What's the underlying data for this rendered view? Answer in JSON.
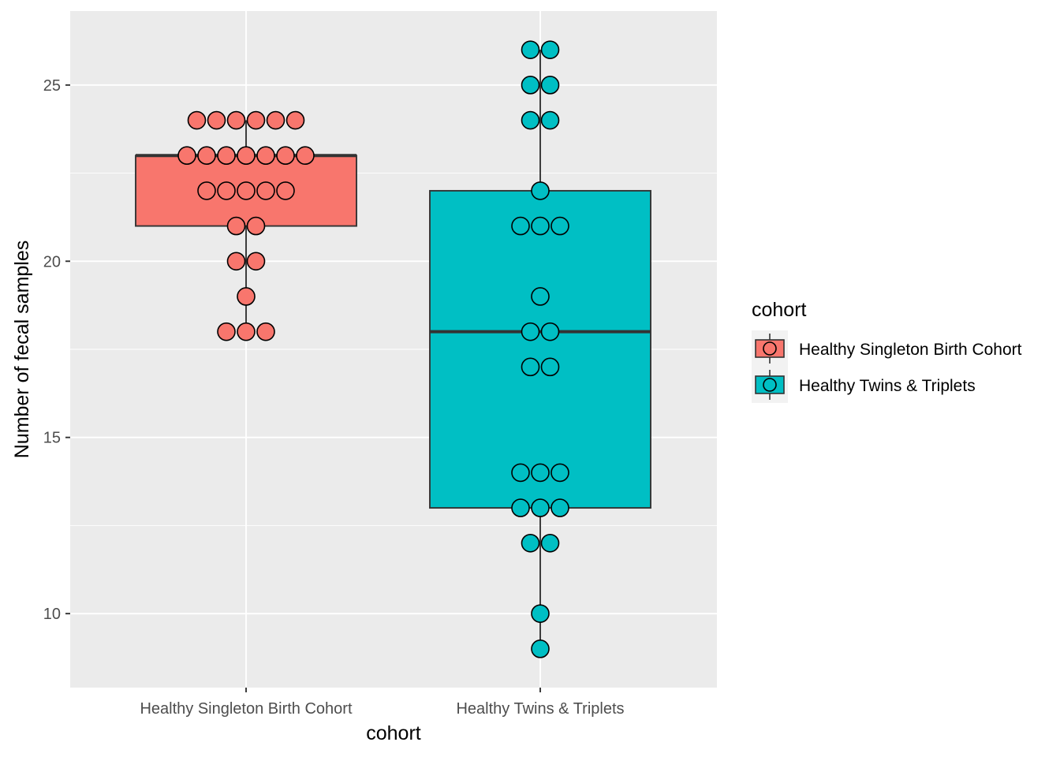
{
  "chart_data": {
    "type": "box",
    "title": "",
    "xlabel": "cohort",
    "ylabel": "Number of fecal samples",
    "ylim": [
      7.9,
      27.1
    ],
    "yticks": [
      10,
      15,
      20,
      25
    ],
    "ytick_labels": [
      "10",
      "15",
      "20",
      "25"
    ],
    "grid": true,
    "legend": {
      "title": "cohort",
      "position": "right"
    },
    "categories": [
      "Healthy Singleton Birth Cohort",
      "Healthy Twins & Triplets"
    ],
    "series": [
      {
        "name": "Healthy Singleton Birth Cohort",
        "color": "#F8766D",
        "box": {
          "lower_whisker": 18,
          "q1": 21,
          "median": 23,
          "q3": 23,
          "upper_whisker": 24
        },
        "points": [
          18,
          18,
          18,
          19,
          20,
          20,
          21,
          21,
          22,
          22,
          22,
          22,
          22,
          23,
          23,
          23,
          23,
          23,
          23,
          23,
          24,
          24,
          24,
          24,
          24,
          24
        ]
      },
      {
        "name": "Healthy Twins & Triplets",
        "color": "#00BFC4",
        "box": {
          "lower_whisker": 9,
          "q1": 13,
          "median": 18,
          "q3": 22,
          "upper_whisker": 26
        },
        "points": [
          9,
          10,
          12,
          12,
          13,
          13,
          13,
          14,
          14,
          14,
          17,
          17,
          18,
          18,
          19,
          21,
          21,
          21,
          22,
          24,
          24,
          25,
          25,
          26,
          26
        ]
      }
    ]
  }
}
